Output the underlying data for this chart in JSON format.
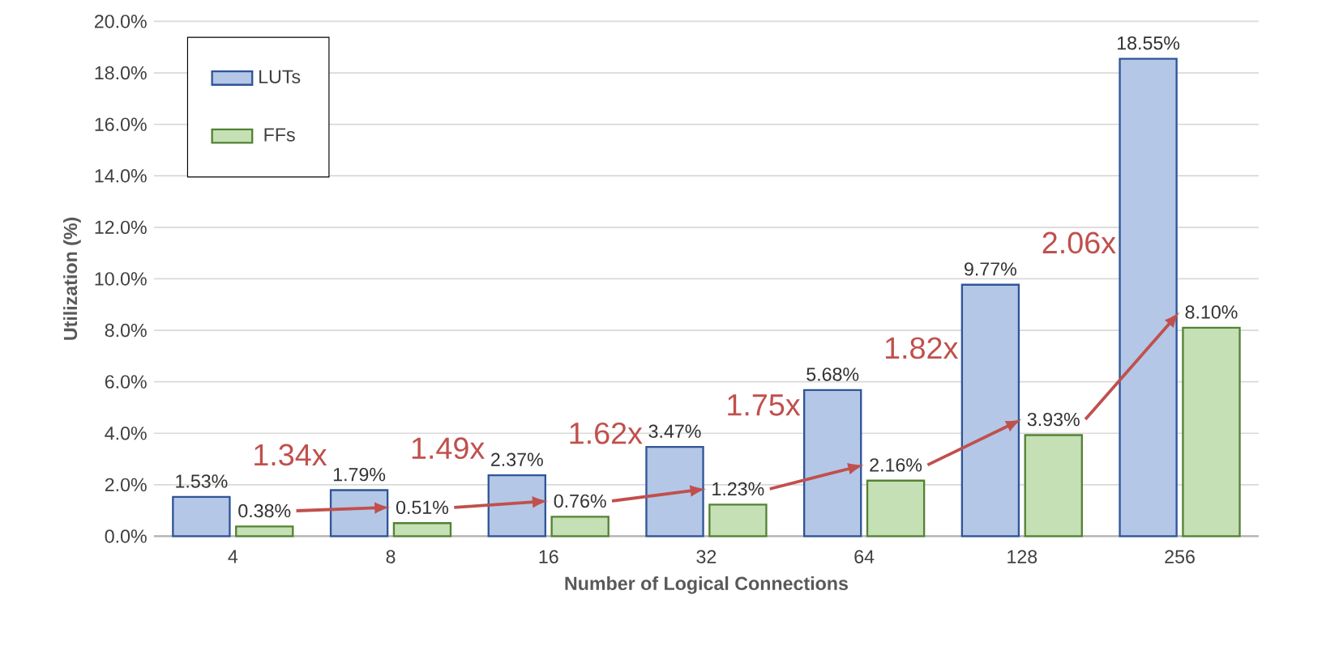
{
  "chart_data": {
    "type": "bar",
    "xlabel": "Number of Logical Connections",
    "ylabel": "Utilization (%)",
    "categories": [
      "4",
      "8",
      "16",
      "32",
      "64",
      "128",
      "256"
    ],
    "series": [
      {
        "name": "LUTs",
        "color": "#b4c7e7",
        "values": [
          1.53,
          1.79,
          2.37,
          3.47,
          5.68,
          9.77,
          18.55
        ],
        "value_labels": [
          "1.53%",
          "1.79%",
          "2.37%",
          "3.47%",
          "5.68%",
          "9.77%",
          "18.55%"
        ]
      },
      {
        "name": "FFs",
        "color": "#c5e0b4",
        "values": [
          0.38,
          0.51,
          0.76,
          1.23,
          2.16,
          3.93,
          8.1
        ],
        "value_labels": [
          "0.38%",
          "0.51%",
          "0.76%",
          "1.23%",
          "2.16%",
          "3.93%",
          "8.10%"
        ]
      }
    ],
    "ylim": [
      0,
      20
    ],
    "yticks": [
      {
        "value": 0,
        "label": "0.0%"
      },
      {
        "value": 2,
        "label": "2.0%"
      },
      {
        "value": 4,
        "label": "4.0%"
      },
      {
        "value": 6,
        "label": "6.0%"
      },
      {
        "value": 8,
        "label": "8.0%"
      },
      {
        "value": 10,
        "label": "10.0%"
      },
      {
        "value": 12,
        "label": "12.0%"
      },
      {
        "value": 14,
        "label": "14.0%"
      },
      {
        "value": 16,
        "label": "16.0%"
      },
      {
        "value": 18,
        "label": "18.0%"
      },
      {
        "value": 20,
        "label": "20.0%"
      }
    ],
    "grid": "y",
    "legend": "top left",
    "annotations": [
      "1.34x",
      "1.49x",
      "1.62x",
      "1.75x",
      "1.82x",
      "2.06x"
    ]
  }
}
